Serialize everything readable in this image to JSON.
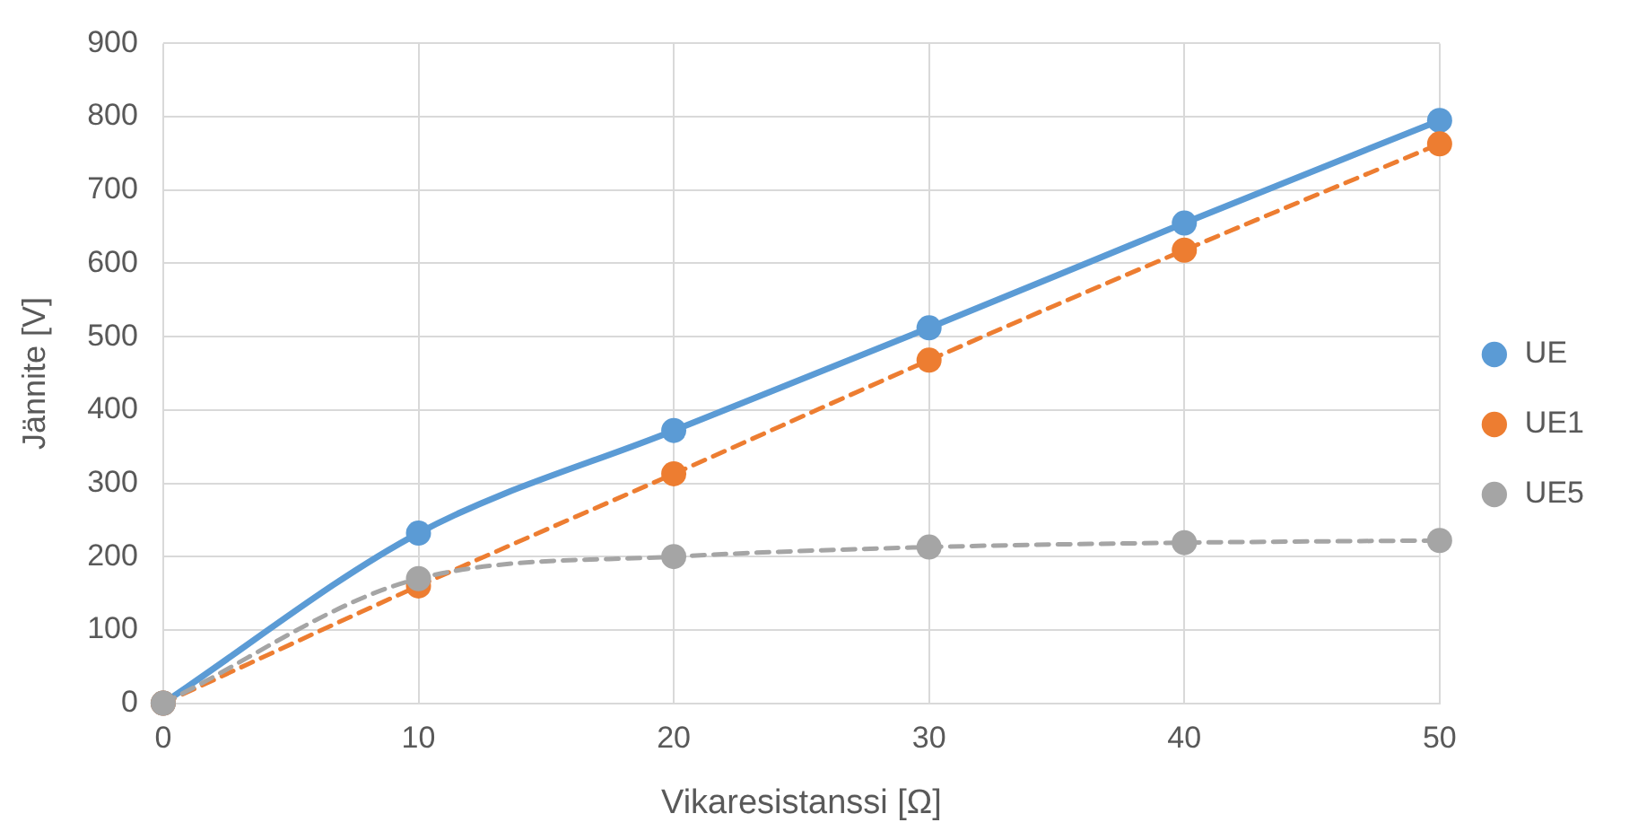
{
  "chart_data": {
    "type": "line",
    "xlabel": "Vikaresistanssi [Ω]",
    "ylabel": "Jännite [V]",
    "x": [
      0,
      10,
      20,
      30,
      40,
      50
    ],
    "series": [
      {
        "name": "UE",
        "color": "#5b9bd5",
        "line_style": "solid",
        "values": [
          0,
          232,
          372,
          512,
          655,
          795
        ]
      },
      {
        "name": "UE1",
        "color": "#ed7d31",
        "line_style": "dashed",
        "values": [
          0,
          160,
          313,
          468,
          618,
          763
        ]
      },
      {
        "name": "UE5",
        "color": "#a5a5a5",
        "line_style": "dashed",
        "values": [
          0,
          170,
          200,
          213,
          219,
          222
        ]
      }
    ],
    "xlim": [
      0,
      50
    ],
    "xticks": [
      0,
      10,
      20,
      30,
      40,
      50
    ],
    "ylim": [
      0,
      900
    ],
    "yticks": [
      0,
      100,
      200,
      300,
      400,
      500,
      600,
      700,
      800,
      900
    ],
    "grid": true,
    "legend": "right",
    "marker": "circle"
  }
}
